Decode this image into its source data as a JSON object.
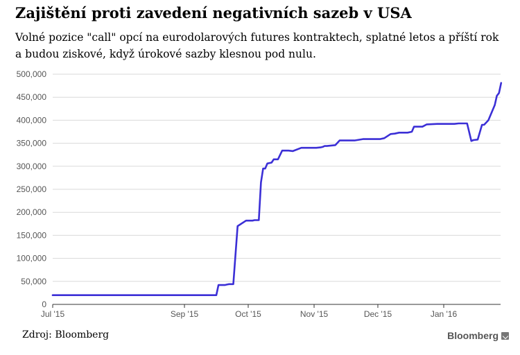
{
  "chart_data": {
    "type": "line",
    "title": "Zajištění proti zavedení negativních sazeb v USA",
    "subtitle": "Volné pozice \"call\" opcí na eurodolarových futures kontraktech, splatné letos a příští rok a budou ziskové, když úrokové sazby klesnou pod nulu.",
    "xlabel": "",
    "ylabel": "",
    "x_tick_labels": [
      "Jul '15",
      "Sep '15",
      "Oct '15",
      "Nov '15",
      "Dec '15",
      "Jan '16"
    ],
    "x_tick_dates": [
      "2015-07-01",
      "2015-09-01",
      "2015-10-01",
      "2015-11-01",
      "2015-12-01",
      "2016-01-01"
    ],
    "y_tick_labels": [
      "0",
      "50,000",
      "100,000",
      "150,000",
      "200,000",
      "250,000",
      "300,000",
      "350,000",
      "400,000",
      "450,000",
      "500,000"
    ],
    "ylim": [
      0,
      500000
    ],
    "grid": true,
    "series_color": "#3b2fd6",
    "series": [
      {
        "x": [
          "2015-07-01",
          "2015-09-16",
          "2015-09-17",
          "2015-09-20",
          "2015-09-21",
          "2015-09-22",
          "2015-09-24",
          "2015-09-26",
          "2015-09-30",
          "2015-10-02",
          "2015-10-03",
          "2015-10-04",
          "2015-10-06",
          "2015-10-07",
          "2015-10-08",
          "2015-10-09",
          "2015-10-10",
          "2015-10-12",
          "2015-10-13",
          "2015-10-15",
          "2015-10-17",
          "2015-10-20",
          "2015-10-22",
          "2015-10-26",
          "2015-10-30",
          "2015-11-02",
          "2015-11-04",
          "2015-11-05",
          "2015-11-06",
          "2015-11-07",
          "2015-11-11",
          "2015-11-13",
          "2015-11-20",
          "2015-11-24",
          "2015-11-27",
          "2015-11-30",
          "2015-12-02",
          "2015-12-04",
          "2015-12-07",
          "2015-12-09",
          "2015-12-11",
          "2015-12-14",
          "2015-12-15",
          "2015-12-17",
          "2015-12-18",
          "2015-12-21",
          "2015-12-22",
          "2015-12-24",
          "2015-12-29",
          "2016-01-04",
          "2016-01-06",
          "2016-01-08",
          "2016-01-12",
          "2016-01-14",
          "2016-01-15",
          "2016-01-17",
          "2016-01-19",
          "2016-01-20",
          "2016-01-22",
          "2016-01-25",
          "2016-01-26",
          "2016-01-27",
          "2016-01-28"
        ],
        "values": [
          20000,
          20000,
          42000,
          42000,
          43000,
          44000,
          44000,
          170000,
          182000,
          182000,
          182000,
          183000,
          183000,
          265000,
          295000,
          295000,
          306000,
          308000,
          315000,
          315000,
          334000,
          334000,
          333000,
          340000,
          340000,
          340000,
          341000,
          342000,
          344000,
          344000,
          346000,
          356000,
          356000,
          359000,
          359000,
          359000,
          359000,
          361000,
          370000,
          371000,
          373000,
          373000,
          373000,
          375000,
          386000,
          386000,
          386000,
          391000,
          392000,
          392000,
          392000,
          393000,
          393000,
          355000,
          357000,
          358000,
          390000,
          390000,
          400000,
          433000,
          453000,
          459000,
          481000
        ]
      }
    ]
  },
  "footer": {
    "source": "Zdroj: Bloomberg",
    "brand": "Bloomberg"
  }
}
